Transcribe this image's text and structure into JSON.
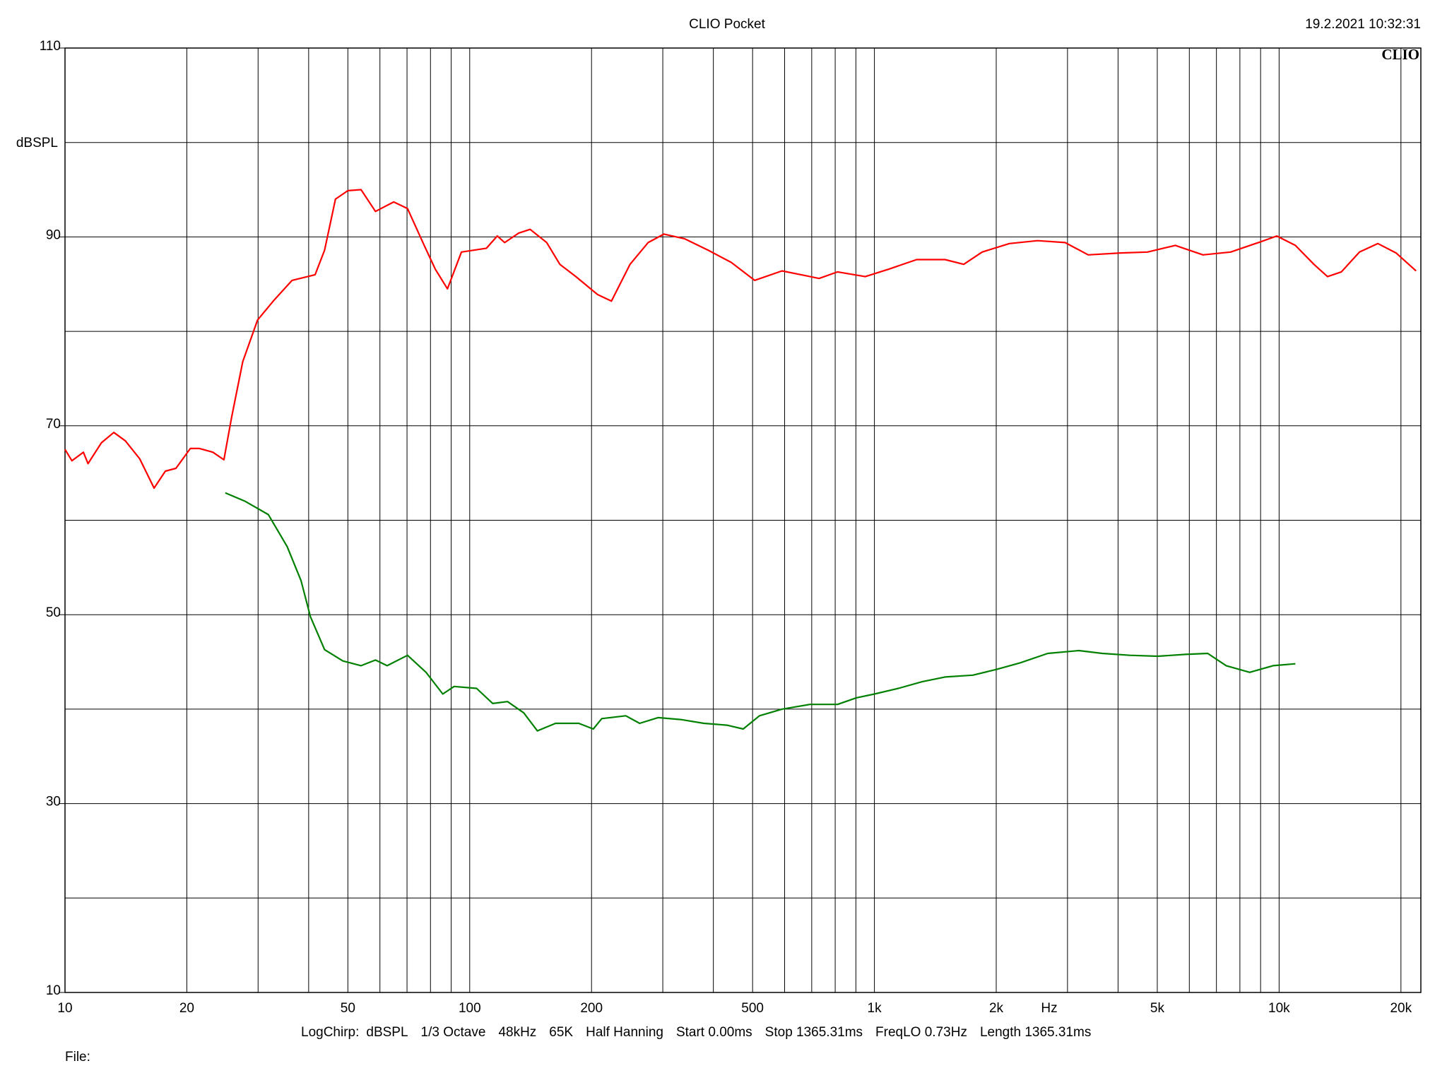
{
  "chart_data": {
    "type": "line",
    "title": "CLIO Pocket",
    "timestamp": "19.2.2021 10:32:31",
    "logo": "CLIO",
    "y_label": "dBSPL",
    "x_label": "Hz",
    "footer": [
      "LogChirp:",
      "dBSPL",
      "1/3 Octave",
      "48kHz",
      "65K",
      "Half Hanning",
      "Start 0.00ms",
      "Stop 1365.31ms",
      "FreqLO 0.73Hz",
      "Length 1365.31ms"
    ],
    "file_label": "File:",
    "x_log": true,
    "grid": true,
    "xlim": [
      10,
      22400
    ],
    "ylim": [
      10,
      110
    ],
    "xticks": [
      10,
      20,
      50,
      100,
      200,
      500,
      {
        "value": 1000,
        "label": "1k"
      },
      {
        "value": 2000,
        "label": "2k"
      },
      {
        "value": 5000,
        "label": "5k"
      },
      {
        "value": 10000,
        "label": "10k"
      },
      {
        "value": 20000,
        "label": "20k"
      }
    ],
    "xgrid_minor": [
      30,
      40,
      60,
      70,
      80,
      90,
      300,
      400,
      600,
      700,
      800,
      900,
      3000,
      4000,
      6000,
      7000,
      8000,
      9000
    ],
    "yticks": [
      10,
      30,
      50,
      70,
      90,
      110
    ],
    "ygrid_minor": [
      20,
      40,
      60,
      80,
      100
    ],
    "series": [
      {
        "color": "#ff0000",
        "x": [
          10,
          10.4,
          11.1,
          11.4,
          12.3,
          13.2,
          14.1,
          15.3,
          16.6,
          17.7,
          18.8,
          20.4,
          21.5,
          23.2,
          24.7,
          25.8,
          27.5,
          29.9,
          32.7,
          36.4,
          41.5,
          43.8,
          46.6,
          50,
          53.9,
          58.5,
          64.9,
          70.2,
          77.2,
          82.2,
          88.1,
          95.4,
          110,
          117,
          122,
          132,
          141,
          155,
          167,
          183,
          207,
          224,
          249,
          276,
          302,
          340,
          388,
          443,
          506,
          591,
          659,
          730,
          811,
          949,
          1087,
          1272,
          1495,
          1662,
          1846,
          2155,
          2530,
          2960,
          3375,
          4060,
          4730,
          5540,
          6485,
          7590,
          8885,
          9870,
          10970,
          12190,
          13170,
          14250,
          15800,
          17540,
          19450,
          21800
        ],
        "values": [
          67.5,
          66.3,
          67.2,
          66,
          68.2,
          69.3,
          68.4,
          66.5,
          63.4,
          65.2,
          65.5,
          67.6,
          67.6,
          67.2,
          66.4,
          70.9,
          76.8,
          81.2,
          83.2,
          85.4,
          86.0,
          88.6,
          94,
          94.9,
          95,
          92.7,
          93.7,
          93,
          89.1,
          86.6,
          84.5,
          88.4,
          88.8,
          90.1,
          89.4,
          90.4,
          90.8,
          89.4,
          87.1,
          85.8,
          83.9,
          83.2,
          87.1,
          89.4,
          90.3,
          89.8,
          88.6,
          87.3,
          85.4,
          86.4,
          86.0,
          85.6,
          86.3,
          85.8,
          86.6,
          87.6,
          87.6,
          87.1,
          88.4,
          89.3,
          89.6,
          89.4,
          88.1,
          88.3,
          88.4,
          89.1,
          88.1,
          88.4,
          89.4,
          90.1,
          89.1,
          87.1,
          85.8,
          86.3,
          88.4,
          89.3,
          88.3,
          86.4
        ]
      },
      {
        "color": "#008000",
        "x": [
          24.9,
          27.9,
          31.8,
          35.4,
          38.3,
          40.4,
          43.8,
          48.6,
          53.9,
          58.5,
          62.5,
          70.2,
          78,
          85.8,
          91.5,
          104,
          114,
          124,
          136,
          147,
          163,
          186,
          202,
          212,
          243,
          263,
          292,
          332,
          379,
          432,
          474,
          520,
          591,
          693,
          811,
          902,
          1000,
          1146,
          1312,
          1495,
          1751,
          2002,
          2290,
          2682,
          3200,
          3655,
          4280,
          5010,
          5870,
          6660,
          7400,
          8460,
          9660,
          10970
        ],
        "values": [
          62.9,
          62,
          60.6,
          57.2,
          53.6,
          49.8,
          46.3,
          45.1,
          44.6,
          45.2,
          44.6,
          45.7,
          43.9,
          41.6,
          42.4,
          42.2,
          40.6,
          40.8,
          39.6,
          37.7,
          38.5,
          38.5,
          37.9,
          39,
          39.3,
          38.5,
          39.1,
          38.9,
          38.5,
          38.3,
          37.9,
          39.3,
          40,
          40.5,
          40.5,
          41.2,
          41.6,
          42.2,
          42.9,
          43.4,
          43.6,
          44.2,
          44.9,
          45.9,
          46.2,
          45.9,
          45.7,
          45.6,
          45.8,
          45.9,
          44.6,
          43.9,
          44.6,
          44.8
        ]
      }
    ]
  }
}
